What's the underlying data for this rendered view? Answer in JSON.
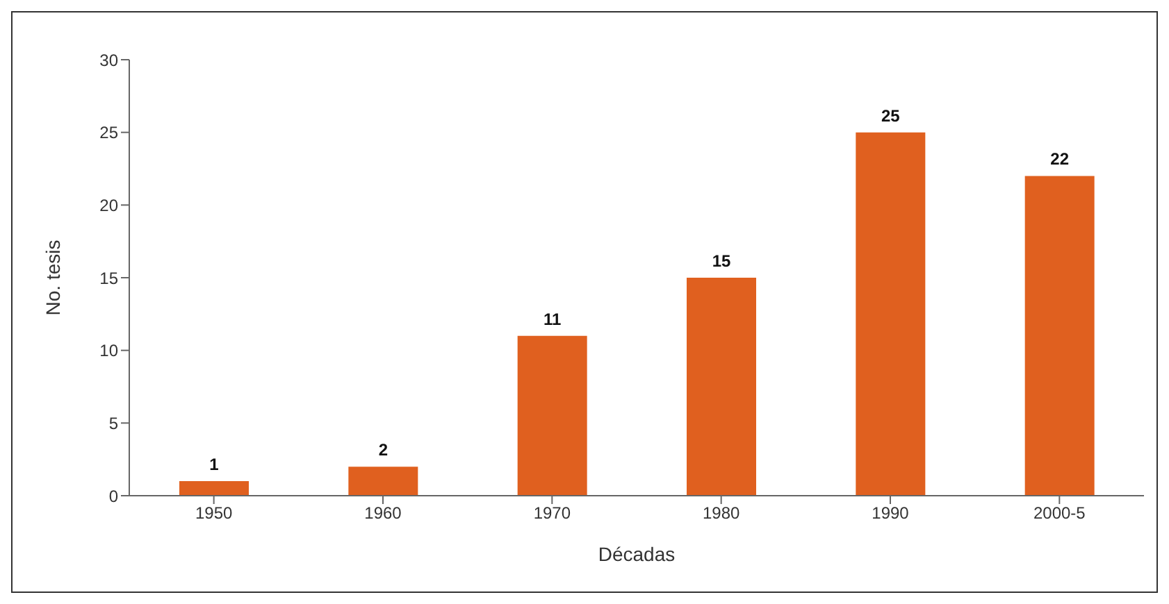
{
  "chart_data": {
    "type": "bar",
    "xlabel": "Décadas",
    "ylabel": "No. tesis",
    "categories": [
      "1950",
      "1960",
      "1970",
      "1980",
      "1990",
      "2000-5"
    ],
    "values": [
      1,
      2,
      11,
      15,
      25,
      22
    ],
    "color": "#e0601f",
    "ylim": [
      0,
      30
    ],
    "yticks": [
      0,
      5,
      10,
      15,
      20,
      25,
      30
    ],
    "grid": false,
    "legend": false,
    "data_labels": true
  }
}
